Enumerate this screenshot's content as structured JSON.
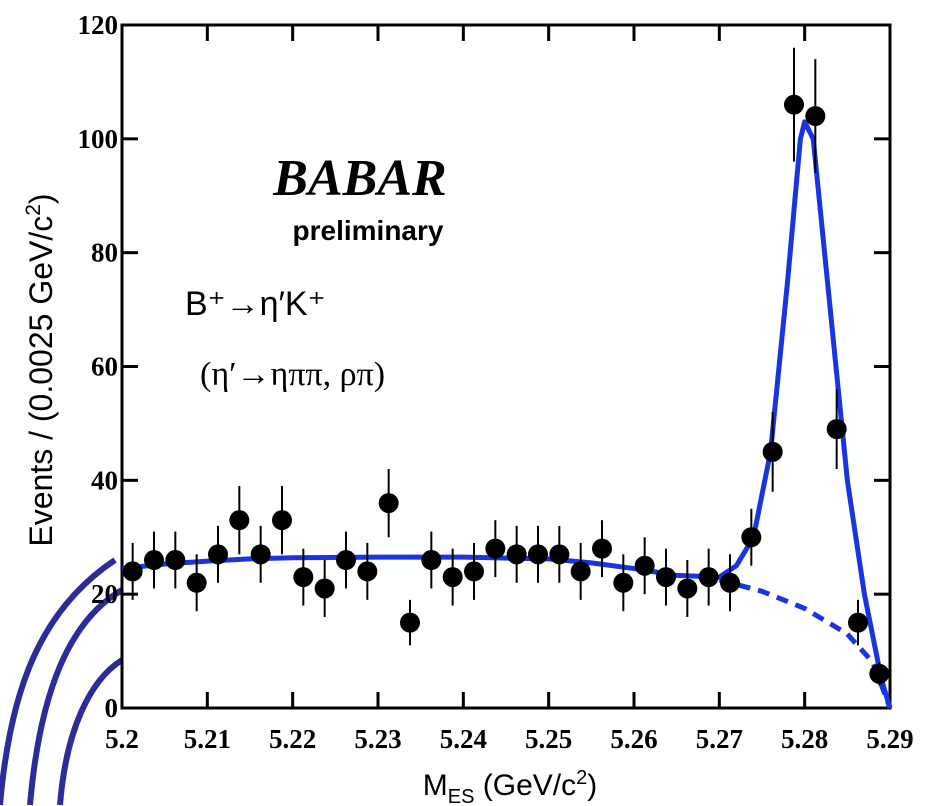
{
  "chart_data": {
    "type": "scatter",
    "logo": "BABAR",
    "subtitle": "preliminary",
    "annotations": [
      "B⁺→η′K⁺",
      "(η′→ηππ, ρπ)"
    ],
    "xlabel_parts": [
      "M",
      "ES",
      " (GeV/c",
      "2",
      ")"
    ],
    "ylabel_parts": [
      "Events / (0.0025 GeV/c",
      "2",
      ")"
    ],
    "xlim": [
      5.2,
      5.29
    ],
    "ylim": [
      0,
      120
    ],
    "xticks": [
      5.2,
      5.21,
      5.22,
      5.23,
      5.24,
      5.25,
      5.26,
      5.27,
      5.28,
      5.29
    ],
    "yticks": [
      0,
      20,
      40,
      60,
      80,
      100,
      120
    ],
    "points": {
      "color": "#000000",
      "x": [
        5.20125,
        5.20375,
        5.20625,
        5.20875,
        5.21125,
        5.21375,
        5.21625,
        5.21875,
        5.22125,
        5.22375,
        5.22625,
        5.22875,
        5.23125,
        5.23375,
        5.23625,
        5.23875,
        5.24125,
        5.24375,
        5.24625,
        5.24875,
        5.25125,
        5.25375,
        5.25625,
        5.25875,
        5.26125,
        5.26375,
        5.26625,
        5.26875,
        5.27125,
        5.27375,
        5.27625,
        5.27875,
        5.28125,
        5.28375,
        5.28625,
        5.28875
      ],
      "values": [
        24,
        26,
        26,
        22,
        27,
        33,
        27,
        33,
        23,
        21,
        26,
        24,
        36,
        15,
        26,
        23,
        24,
        28,
        27,
        27,
        27,
        24,
        28,
        22,
        25,
        23,
        21,
        23,
        22,
        30,
        45,
        106,
        104,
        49,
        15,
        6
      ],
      "errors": [
        5,
        5,
        5,
        5,
        5,
        6,
        5,
        6,
        5,
        5,
        5,
        5,
        6,
        4,
        5,
        5,
        5,
        5,
        5,
        5,
        5,
        5,
        5,
        5,
        5,
        5,
        5,
        5,
        5,
        5,
        7,
        10,
        10,
        7,
        4,
        2
      ]
    },
    "series": [
      {
        "style": "solid",
        "color": "#1a35e0",
        "x": [
          5.2,
          5.205,
          5.21,
          5.215,
          5.22,
          5.23,
          5.24,
          5.25,
          5.255,
          5.26,
          5.265,
          5.27,
          5.272,
          5.274,
          5.276,
          5.278,
          5.2795,
          5.28,
          5.281,
          5.283,
          5.285,
          5.287,
          5.289,
          5.29
        ],
        "values": [
          24.5,
          25.3,
          25.8,
          26.2,
          26.4,
          26.5,
          26.5,
          26.2,
          25.5,
          24.5,
          23.3,
          23,
          25,
          30,
          45,
          75,
          100,
          103,
          100,
          70,
          40,
          20,
          5,
          0
        ]
      },
      {
        "style": "dashed",
        "color": "#1a35e0",
        "x": [
          5.27,
          5.275,
          5.28,
          5.285,
          5.288,
          5.29
        ],
        "values": [
          22.5,
          20.5,
          17.5,
          13,
          8,
          0
        ]
      }
    ]
  }
}
